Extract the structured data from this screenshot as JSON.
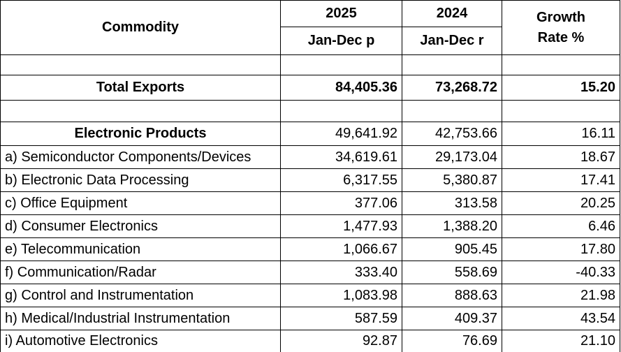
{
  "header": {
    "commodity": "Commodity",
    "years": [
      "2025",
      "2024"
    ],
    "periods": [
      "Jan-Dec p",
      "Jan-Dec r"
    ],
    "growth": [
      "Growth",
      "Rate %"
    ]
  },
  "total": {
    "label": "Total Exports",
    "values": [
      "84,405.36",
      "73,268.72",
      "15.20"
    ]
  },
  "group": {
    "label": "Electronic Products",
    "values": [
      "49,641.92",
      "42,753.66",
      "16.11"
    ]
  },
  "items": [
    {
      "label": "a) Semiconductor Components/Devices",
      "values": [
        "34,619.61",
        "29,173.04",
        "18.67"
      ]
    },
    {
      "label": "b) Electronic Data Processing",
      "values": [
        "6,317.55",
        "5,380.87",
        "17.41"
      ]
    },
    {
      "label": "c) Office Equipment",
      "values": [
        "377.06",
        "313.58",
        "20.25"
      ]
    },
    {
      "label": "d) Consumer Electronics",
      "values": [
        "1,477.93",
        "1,388.20",
        "6.46"
      ]
    },
    {
      "label": "e) Telecommunication",
      "values": [
        "1,066.67",
        "905.45",
        "17.80"
      ]
    },
    {
      "label": "f) Communication/Radar",
      "values": [
        "333.40",
        "558.69",
        "-40.33"
      ]
    },
    {
      "label": "g) Control and Instrumentation",
      "values": [
        "1,083.98",
        "888.63",
        "21.98"
      ]
    },
    {
      "label": "h) Medical/Industrial Instrumentation",
      "values": [
        "587.59",
        "409.37",
        "43.54"
      ]
    },
    {
      "label": "i) Automotive Electronics",
      "values": [
        "92.87",
        "76.69",
        "21.10"
      ]
    }
  ]
}
